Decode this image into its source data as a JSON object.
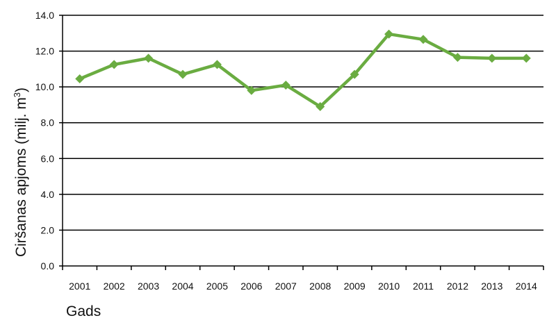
{
  "chart_data": {
    "type": "line",
    "title": "",
    "xlabel": "Gads",
    "ylabel": "Ciršanas apjoms (milj. m",
    "ylabel_superscript": "3",
    "ylabel_suffix": ")",
    "categories": [
      "2001",
      "2002",
      "2003",
      "2004",
      "2005",
      "2006",
      "2007",
      "2008",
      "2009",
      "2010",
      "2011",
      "2012",
      "2013",
      "2014"
    ],
    "series": [
      {
        "values": [
          10.45,
          11.25,
          11.6,
          10.7,
          11.25,
          9.8,
          10.1,
          8.9,
          10.7,
          12.95,
          12.65,
          11.65,
          11.6,
          11.6
        ],
        "color": "#6aac41",
        "marker": "diamond"
      }
    ],
    "ylim": [
      0,
      14
    ],
    "yticks": [
      0,
      2,
      4,
      6,
      8,
      10,
      12,
      14
    ],
    "ytick_labels": [
      "0.0",
      "2.0",
      "4.0",
      "6.0",
      "8.0",
      "10.0",
      "12.0",
      "14.0"
    ],
    "grid": true,
    "legend": "none"
  }
}
